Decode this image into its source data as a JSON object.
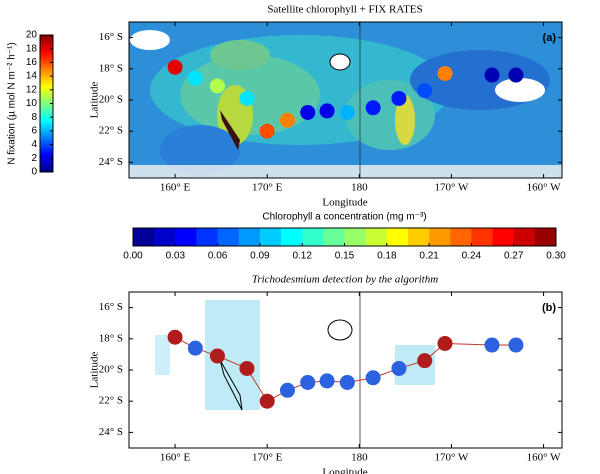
{
  "chart_data": [
    {
      "type": "scatter",
      "title": "Satellite chlorophyll + FIX RATES",
      "panel_label": "(a)",
      "xlabel": "Longitude",
      "ylabel": "Latitude",
      "x": [
        160,
        162.2,
        164.6,
        167.8,
        170,
        172.2,
        174.4,
        176.5,
        178.7,
        181.5,
        184.3,
        187.1,
        189.3,
        194.4,
        197
      ],
      "values": [
        -17.9,
        -18.6,
        -19.1,
        -19.9,
        -22.0,
        -21.3,
        -20.8,
        -20.7,
        -20.8,
        -20.5,
        -19.9,
        -19.4,
        -18.3,
        -18.4,
        -18.4
      ],
      "fixation": [
        18,
        7,
        11,
        7,
        16,
        15,
        2,
        2,
        6,
        3,
        3,
        4,
        15,
        1,
        1
      ],
      "colormap": "jet",
      "xlim": [
        155,
        202
      ],
      "ylim": [
        -25,
        -15
      ],
      "xticks": [
        {
          "value": 160,
          "label": "160° E"
        },
        {
          "value": 170,
          "label": "170° E"
        },
        180,
        {
          "value": 190,
          "label": "170° W"
        },
        {
          "value": 200,
          "label": "160° W"
        }
      ],
      "yticks": [
        {
          "value": -16,
          "label": "16° S"
        },
        {
          "value": -18,
          "label": "18° S"
        },
        {
          "value": -20,
          "label": "20° S"
        },
        {
          "value": -22,
          "label": "22° S"
        },
        {
          "value": -24,
          "label": "24° S"
        }
      ]
    },
    {
      "type": "scatter",
      "title": "Trichodesmium detection by the algorithm",
      "panel_label": "(b)",
      "xlabel": "Longitude",
      "ylabel": "Latitude",
      "x": [
        160,
        162.2,
        164.6,
        167.8,
        170,
        172.2,
        174.4,
        176.5,
        178.7,
        181.5,
        184.3,
        187.1,
        189.3,
        194.4,
        197
      ],
      "values": [
        -17.9,
        -18.6,
        -19.1,
        -19.9,
        -22.0,
        -21.3,
        -20.8,
        -20.7,
        -20.8,
        -20.5,
        -19.9,
        -19.4,
        -18.3,
        -18.4,
        -18.4
      ],
      "colors": [
        "#b01c1c",
        "#2a62e0",
        "#b01c1c",
        "#b01c1c",
        "#b01c1c",
        "#2a62e0",
        "#2a62e0",
        "#2a62e0",
        "#2a62e0",
        "#2a62e0",
        "#2a62e0",
        "#b01c1c",
        "#b01c1c",
        "#2a62e0",
        "#2a62e0"
      ],
      "line_color": "#c0392b",
      "xlim": [
        155,
        202
      ],
      "ylim": [
        -25,
        -15
      ],
      "xticks": [
        {
          "value": 160,
          "label": "160° E"
        },
        {
          "value": 170,
          "label": "170° E"
        },
        180,
        {
          "value": 190,
          "label": "170° W"
        },
        {
          "value": 200,
          "label": "160° W"
        }
      ],
      "yticks": [
        {
          "value": -16,
          "label": "16° S"
        },
        {
          "value": -18,
          "label": "18° S"
        },
        {
          "value": -20,
          "label": "20° S"
        },
        {
          "value": -22,
          "label": "22° S"
        },
        {
          "value": -24,
          "label": "24° S"
        }
      ]
    },
    {
      "type": "colorbar",
      "orientation": "vertical",
      "label": "N fixation (µ mol N m⁻² h⁻¹)",
      "colormap": "jet",
      "lim": [
        0,
        20
      ],
      "ticks": [
        0,
        2,
        4,
        6,
        8,
        10,
        12,
        14,
        16,
        18,
        20
      ]
    },
    {
      "type": "colorbar",
      "orientation": "horizontal",
      "label": "Chlorophyll a concentration (mg m⁻³)",
      "colormap": "jet",
      "lim": [
        0,
        0.3
      ],
      "ticks": [
        {
          "value": 0,
          "label": "0.00"
        },
        {
          "value": 0.03,
          "label": "0.03"
        },
        {
          "value": 0.06,
          "label": "0.06"
        },
        {
          "value": 0.09,
          "label": "0.09"
        },
        {
          "value": 0.12,
          "label": "0.12"
        },
        {
          "value": 0.15,
          "label": "0.15"
        },
        {
          "value": 0.18,
          "label": "0.18"
        },
        {
          "value": 0.21,
          "label": "0.21"
        },
        {
          "value": 0.24,
          "label": "0.24"
        },
        {
          "value": 0.27,
          "label": "0.27"
        },
        {
          "value": 0.3,
          "label": "0.30"
        }
      ]
    }
  ]
}
